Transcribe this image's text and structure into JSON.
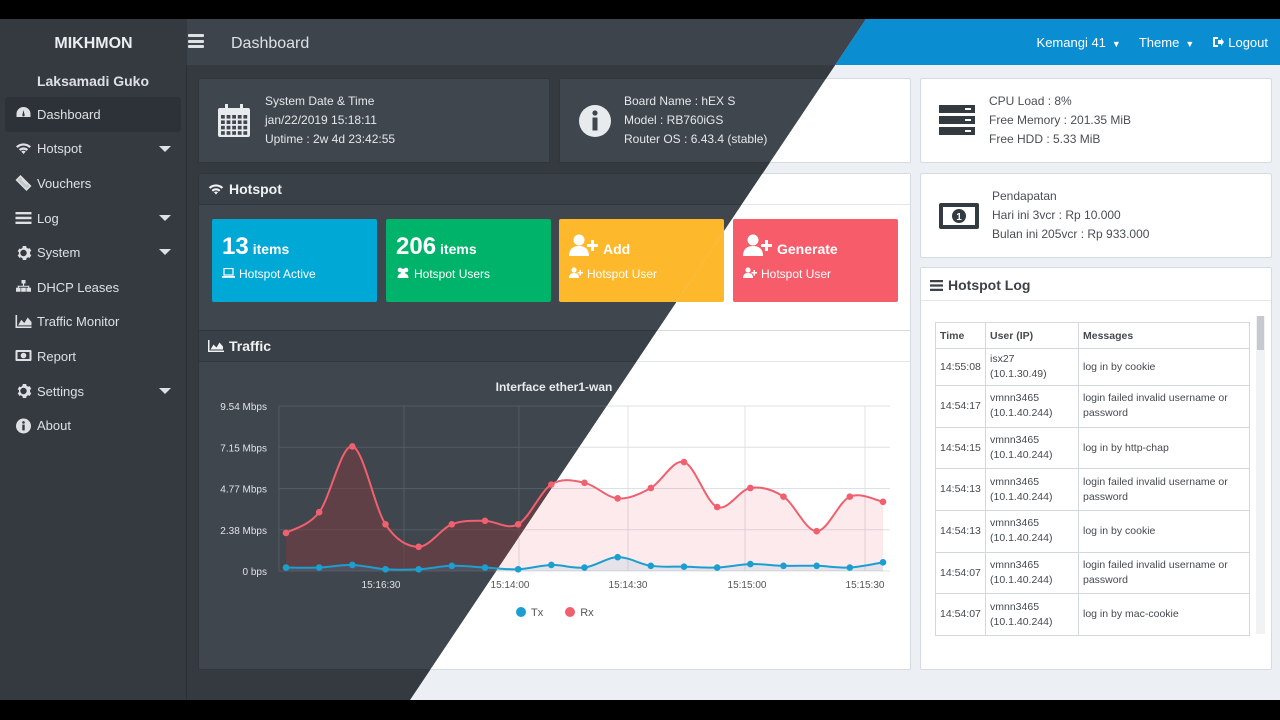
{
  "app": {
    "brand": "MIKHMON",
    "page_title": "Dashboard"
  },
  "topbar": {
    "router": "Kemangi 41",
    "theme": "Theme",
    "logout": "Logout"
  },
  "sidebar": {
    "user": "Laksamadi Guko",
    "items": [
      {
        "label": "Dashboard",
        "icon": "dashboard-icon",
        "active": true,
        "submenu": false
      },
      {
        "label": "Hotspot",
        "icon": "wifi-icon",
        "active": false,
        "submenu": true
      },
      {
        "label": "Vouchers",
        "icon": "ticket-icon",
        "active": false,
        "submenu": false
      },
      {
        "label": "Log",
        "icon": "list-icon",
        "active": false,
        "submenu": true
      },
      {
        "label": "System",
        "icon": "gear-icon",
        "active": false,
        "submenu": true
      },
      {
        "label": "DHCP Leases",
        "icon": "sitemap-icon",
        "active": false,
        "submenu": false
      },
      {
        "label": "Traffic Monitor",
        "icon": "area-chart-icon",
        "active": false,
        "submenu": false
      },
      {
        "label": "Report",
        "icon": "money-icon",
        "active": false,
        "submenu": false
      },
      {
        "label": "Settings",
        "icon": "gear-icon",
        "active": false,
        "submenu": true
      },
      {
        "label": "About",
        "icon": "info-icon",
        "active": false,
        "submenu": false
      }
    ]
  },
  "system_info": {
    "l1": "System Date & Time",
    "l2": "jan/22/2019 15:18:11",
    "l3": "Uptime : 2w 4d 23:42:55"
  },
  "board_info": {
    "l1": "Board Name : hEX S",
    "l2": "Model : RB760iGS",
    "l3": "Router OS : 6.43.4 (stable)"
  },
  "resource_info": {
    "l1": "CPU Load : 8%",
    "l2": "Free Memory : 201.35 MiB",
    "l3": "Free HDD : 5.33 MiB"
  },
  "income": {
    "l1": "Pendapatan",
    "l2": "Hari ini 3vcr : Rp 10.000",
    "l3": "Bulan ini 205vcr : Rp 933.000"
  },
  "hotspot": {
    "title": "Hotspot",
    "tiles": [
      {
        "big": "13",
        "big_suffix": "items",
        "sub": "Hotspot Active",
        "color": "#00a8d6"
      },
      {
        "big": "206",
        "big_suffix": "items",
        "sub": "Hotspot Users",
        "color": "#00b36b"
      },
      {
        "big": "",
        "big_suffix": "Add",
        "sub": "Hotspot User",
        "color": "#fdb82b"
      },
      {
        "big": "",
        "big_suffix": "Generate",
        "sub": "Hotspot User",
        "color": "#f65c6a"
      }
    ]
  },
  "traffic": {
    "title": "Traffic"
  },
  "hotspot_log": {
    "title": "Hotspot Log",
    "headers": [
      "Time",
      "User (IP)",
      "Messages"
    ],
    "rows": [
      [
        "14:55:08",
        "isx27 (10.1.30.49)",
        "log in by cookie"
      ],
      [
        "14:54:17",
        "vmnn3465 (10.1.40.244)",
        "login failed invalid username or password"
      ],
      [
        "14:54:15",
        "vmnn3465 (10.1.40.244)",
        "log in by http-chap"
      ],
      [
        "14:54:13",
        "vmnn3465 (10.1.40.244)",
        "login failed invalid username or password"
      ],
      [
        "14:54:13",
        "vmnn3465 (10.1.40.244)",
        "log in by cookie"
      ],
      [
        "14:54:07",
        "vmnn3465 (10.1.40.244)",
        "login failed invalid username or password"
      ],
      [
        "14:54:07",
        "vmnn3465 (10.1.40.244)",
        "log in by mac-cookie"
      ]
    ]
  },
  "chart_data": {
    "type": "line",
    "title": "Interface ether1-wan",
    "y_ticks": [
      "0 bps",
      "2.38 Mbps",
      "4.77 Mbps",
      "7.15 Mbps",
      "9.54 Mbps"
    ],
    "ylim": [
      0,
      9.54
    ],
    "y_unit": "Mbps",
    "x_ticks_dark": [
      "15:16:30"
    ],
    "x_ticks_light": [
      "15:14:00",
      "15:14:30",
      "15:15:00",
      "15:15:30"
    ],
    "series": [
      {
        "name": "Tx",
        "color": "#1b9fd0",
        "values": [
          0.2,
          0.2,
          0.35,
          0.1,
          0.1,
          0.3,
          0.2,
          0.1,
          0.35,
          0.2,
          0.8,
          0.3,
          0.25,
          0.2,
          0.4,
          0.3,
          0.3,
          0.2,
          0.5
        ]
      },
      {
        "name": "Rx",
        "color": "#f0606f",
        "values": [
          2.2,
          3.4,
          7.2,
          2.7,
          1.4,
          2.7,
          2.9,
          2.7,
          5.0,
          5.1,
          4.2,
          4.8,
          6.3,
          3.7,
          4.8,
          4.3,
          2.3,
          4.3,
          4.0
        ]
      }
    ],
    "legend": "bottom-center"
  }
}
